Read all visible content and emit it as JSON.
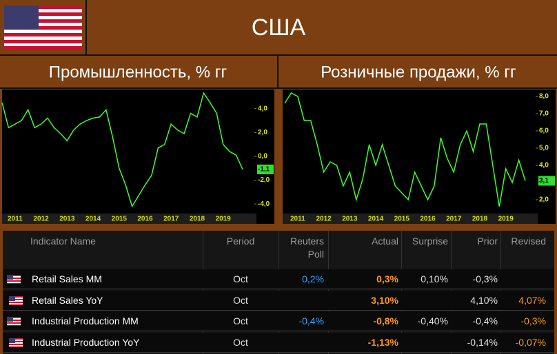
{
  "header": {
    "title": "США"
  },
  "chart_data": [
    {
      "type": "line",
      "title": "Промышленность, % гг",
      "categories": [
        null,
        null,
        "2011",
        null,
        null,
        null,
        "2012",
        null,
        null,
        null,
        "2013",
        null,
        null,
        null,
        "2014",
        null,
        null,
        null,
        "2015",
        null,
        null,
        null,
        "2016",
        null,
        null,
        null,
        "2017",
        null,
        null,
        null,
        "2018",
        null,
        null,
        null,
        "2019",
        null,
        null,
        null
      ],
      "series": [
        {
          "color": "#3dff2a",
          "values": [
            4.5,
            2.4,
            2.7,
            3.0,
            3.9,
            2.4,
            2.7,
            3.2,
            2.4,
            1.9,
            1.3,
            2.2,
            2.7,
            3.0,
            3.2,
            3.3,
            3.9,
            1.6,
            -1.0,
            -2.4,
            -4.2,
            -3.3,
            -2.4,
            -1.6,
            0.7,
            1.0,
            2.7,
            2.2,
            1.9,
            3.6,
            3.3,
            5.3,
            4.5,
            3.6,
            1.0,
            0.4,
            0.1,
            -1.1
          ]
        }
      ],
      "ylim": [
        -4.8,
        5.6
      ],
      "yticks": [
        {
          "value": 4,
          "label": "4,0"
        },
        {
          "value": 2,
          "label": "2,0"
        },
        {
          "value": 0,
          "label": "0,0"
        },
        {
          "value": -2,
          "label": "-2,0"
        },
        {
          "value": -4,
          "label": "-4,0"
        }
      ],
      "last_value_label": {
        "value": -1.1,
        "label": "-1,1"
      },
      "grid": false
    },
    {
      "type": "line",
      "title": "Розничные продажи, % гг",
      "categories": [
        null,
        null,
        "2011",
        null,
        null,
        null,
        "2012",
        null,
        null,
        null,
        "2013",
        null,
        null,
        null,
        "2014",
        null,
        null,
        null,
        "2015",
        null,
        null,
        null,
        "2016",
        null,
        null,
        null,
        "2017",
        null,
        null,
        null,
        "2018",
        null,
        null,
        null,
        "2019",
        null,
        null,
        null
      ],
      "series": [
        {
          "color": "#3dff2a",
          "values": [
            7.6,
            8.2,
            8.0,
            6.6,
            6.6,
            5.2,
            3.6,
            4.2,
            4.0,
            2.8,
            3.6,
            2.0,
            3.2,
            5.2,
            4.0,
            5.2,
            4.0,
            2.8,
            2.4,
            2.0,
            3.6,
            2.8,
            2.0,
            2.8,
            5.6,
            4.4,
            3.6,
            5.2,
            6.0,
            4.8,
            6.4,
            6.4,
            4.0,
            1.6,
            3.8,
            3.0,
            4.3,
            3.1
          ]
        }
      ],
      "ylim": [
        1.2,
        8.4
      ],
      "yticks": [
        {
          "value": 8,
          "label": "8,0"
        },
        {
          "value": 7,
          "label": "7,0"
        },
        {
          "value": 6,
          "label": "6,0"
        },
        {
          "value": 5,
          "label": "5,0"
        },
        {
          "value": 4,
          "label": "4,0"
        },
        {
          "value": 2,
          "label": "2,0"
        }
      ],
      "last_value_label": {
        "value": 3.1,
        "label": "3,1"
      },
      "grid": false
    }
  ],
  "table": {
    "columns": [
      "Indicator Name",
      "Period",
      "Reuters Poll",
      "Actual",
      "Surprise",
      "Prior",
      "Revised"
    ],
    "column_colors": [
      "#ffffff",
      "#e0e0e0",
      "#2ea6ff",
      "#ff9a1a",
      "#e0e0e0",
      "#e0e0e0",
      "#ff9a1a"
    ],
    "rows": [
      [
        "Retail Sales MM",
        "Oct",
        "0,2%",
        "0,3%",
        "0,10%",
        "-0,3%",
        null
      ],
      [
        "Retail Sales YoY",
        "Oct",
        null,
        "3,10%",
        null,
        "4,10%",
        "4,07%"
      ],
      [
        "Industrial Production MM",
        "Oct",
        "-0,4%",
        "-0,8%",
        "-0,40%",
        "-0,4%",
        "-0,3%"
      ],
      [
        "Industrial Production YoY",
        "Oct",
        null,
        "-1,13%",
        null,
        "-0,14%",
        "-0,07%"
      ]
    ]
  }
}
